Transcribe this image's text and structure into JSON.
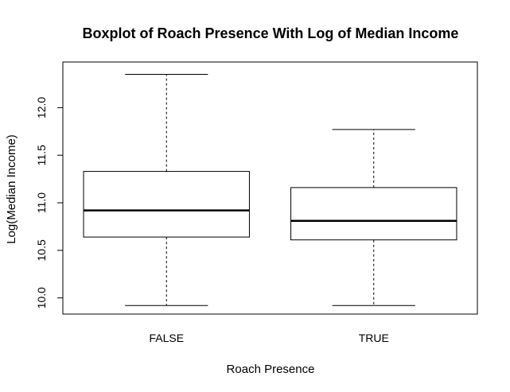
{
  "chart_data": {
    "type": "boxplot",
    "title": "Boxplot of Roach Presence With Log of Median Income",
    "xlabel": "Roach Presence",
    "ylabel": "Log(Median Income)",
    "categories": [
      "FALSE",
      "TRUE"
    ],
    "boxes": [
      {
        "category": "FALSE",
        "whisker_low": 9.92,
        "q1": 10.64,
        "median": 10.92,
        "q3": 11.33,
        "whisker_high": 12.35
      },
      {
        "category": "TRUE",
        "whisker_low": 9.92,
        "q1": 10.61,
        "median": 10.81,
        "q3": 11.16,
        "whisker_high": 11.77
      }
    ],
    "yticks": [
      "10.0",
      "10.5",
      "11.0",
      "11.5",
      "12.0"
    ],
    "ylim": [
      9.83,
      12.48
    ],
    "grid": false,
    "colors": {
      "box_fill": "#ffffff",
      "stroke": "#000000"
    }
  }
}
